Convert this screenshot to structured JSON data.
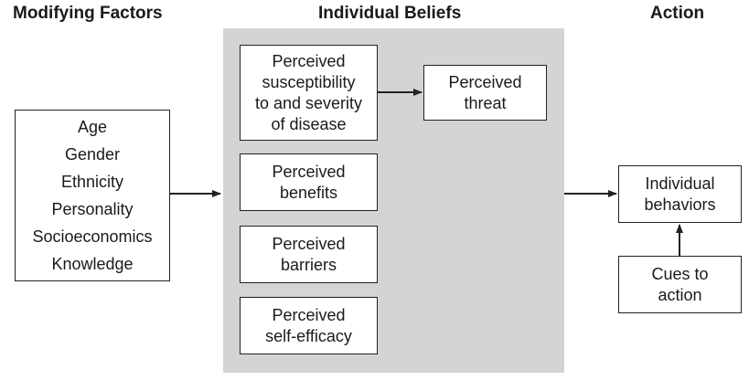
{
  "headings": {
    "modifying": "Modifying Factors",
    "beliefs": "Individual Beliefs",
    "action": "Action"
  },
  "modifying_factors": [
    "Age",
    "Gender",
    "Ethnicity",
    "Personality",
    "Socioeconomics",
    "Knowledge"
  ],
  "beliefs": {
    "susceptibility": "Perceived\nsusceptibility\nto and severity\nof disease",
    "threat": "Perceived\nthreat",
    "benefits": "Perceived\nbenefits",
    "barriers": "Perceived\nbarriers",
    "self_efficacy": "Perceived\nself-efficacy"
  },
  "action": {
    "behaviors": "Individual\nbehaviors",
    "cues": "Cues to\naction"
  },
  "colors": {
    "panel": "#d4d4d4",
    "stroke": "#222222"
  }
}
